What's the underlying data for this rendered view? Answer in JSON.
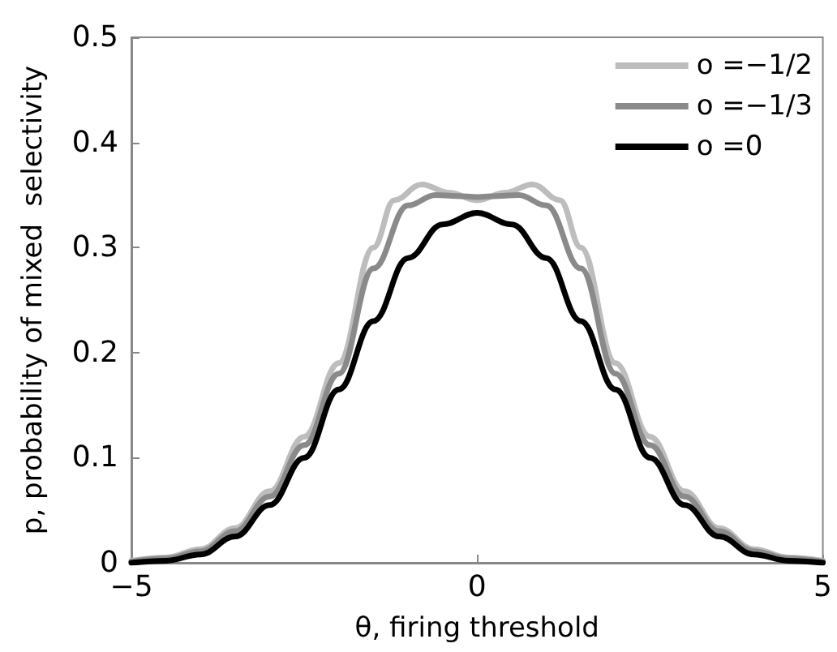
{
  "chart_data": {
    "type": "line",
    "xlabel": "θ, firing threshold",
    "ylabel": "p, probability of mixed  selectivity",
    "xlim": [
      -5,
      5
    ],
    "xticks": [
      -5,
      0,
      5
    ],
    "ylim": [
      0,
      0.5
    ],
    "yticks": [
      0,
      0.1,
      0.2,
      0.3,
      0.4,
      0.5
    ],
    "grid": false,
    "legend": "top right",
    "marker": "none",
    "line_style": "solid",
    "series": [
      {
        "name": "o =−1/2",
        "color": "#bdbdbd",
        "x": [
          -5,
          -4.5,
          -4,
          -3.5,
          -3,
          -2.5,
          -2,
          -1.5,
          -1.2,
          -0.8,
          -0.4,
          0,
          0.4,
          0.8,
          1.2,
          1.5,
          2,
          2.5,
          3,
          3.5,
          4,
          4.5,
          5
        ],
        "values": [
          0.002,
          0.005,
          0.013,
          0.033,
          0.068,
          0.12,
          0.19,
          0.3,
          0.345,
          0.36,
          0.352,
          0.345,
          0.352,
          0.36,
          0.345,
          0.3,
          0.19,
          0.12,
          0.068,
          0.033,
          0.013,
          0.005,
          0.002
        ]
      },
      {
        "name": "o =−1/3",
        "color": "#8a8a8a",
        "x": [
          -5,
          -4.5,
          -4,
          -3.5,
          -3,
          -2.5,
          -2,
          -1.5,
          -1,
          -0.6,
          -0.3,
          0,
          0.3,
          0.6,
          1,
          1.5,
          2,
          2.5,
          3,
          3.5,
          4,
          4.5,
          5
        ],
        "values": [
          0.001,
          0.004,
          0.011,
          0.03,
          0.063,
          0.112,
          0.18,
          0.28,
          0.34,
          0.35,
          0.349,
          0.348,
          0.349,
          0.35,
          0.34,
          0.28,
          0.18,
          0.112,
          0.063,
          0.03,
          0.011,
          0.004,
          0.001
        ]
      },
      {
        "name": "o =0",
        "color": "#000000",
        "x": [
          -5,
          -4.5,
          -4,
          -3.5,
          -3,
          -2.5,
          -2,
          -1.5,
          -1,
          -0.5,
          0,
          0.5,
          1,
          1.5,
          2,
          2.5,
          3,
          3.5,
          4,
          4.5,
          5
        ],
        "values": [
          0,
          0.002,
          0.008,
          0.025,
          0.055,
          0.1,
          0.165,
          0.23,
          0.29,
          0.322,
          0.333,
          0.322,
          0.29,
          0.23,
          0.165,
          0.1,
          0.055,
          0.025,
          0.008,
          0.002,
          0
        ]
      }
    ]
  }
}
